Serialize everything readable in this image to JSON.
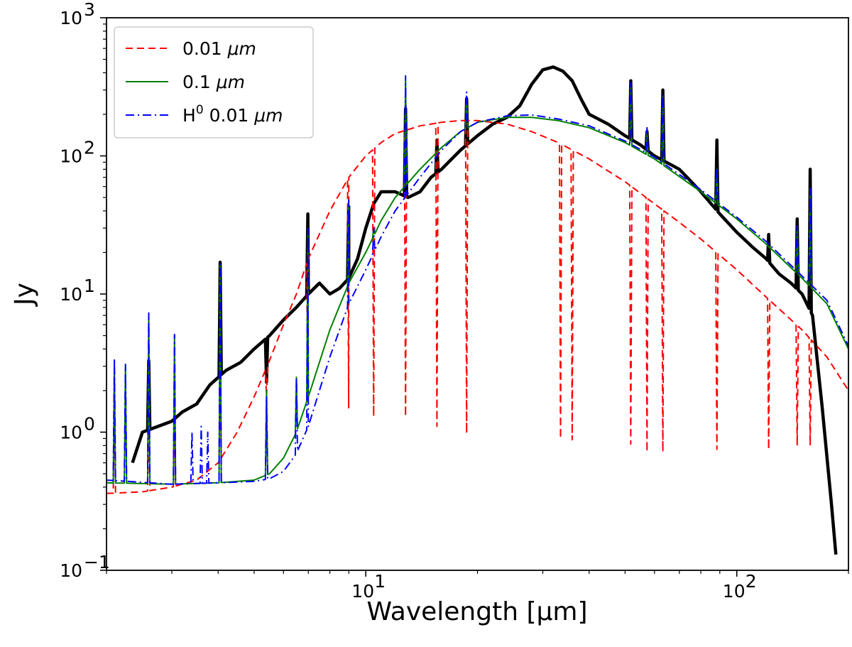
{
  "chart_data": {
    "type": "line",
    "xscale": "log",
    "yscale": "log",
    "xlim": [
      2.0,
      200.0
    ],
    "ylim": [
      0.1,
      1000
    ],
    "xlabel": "Wavelength [μm]",
    "ylabel": "Jy",
    "x_ticks": [
      {
        "value": 10,
        "base": "10",
        "exp": "1"
      },
      {
        "value": 100,
        "base": "10",
        "exp": "2"
      }
    ],
    "y_ticks": [
      {
        "value": 0.1,
        "base": "10",
        "exp": "−1"
      },
      {
        "value": 1,
        "base": "10",
        "exp": "0"
      },
      {
        "value": 10,
        "base": "10",
        "exp": "1"
      },
      {
        "value": 100,
        "base": "10",
        "exp": "2"
      },
      {
        "value": 1000,
        "base": "10",
        "exp": "3"
      }
    ],
    "legend": {
      "position": "top-left",
      "entries": [
        {
          "series": "model_001",
          "prefix": "0.01 ",
          "unit": "μm",
          "sup": ""
        },
        {
          "series": "model_01",
          "prefix": "0.1 ",
          "unit": "μm",
          "sup": ""
        },
        {
          "series": "model_H0",
          "prefix": "H",
          "sup": "0",
          "suffix": " 0.01 ",
          "unit": "μm"
        }
      ]
    },
    "series": [
      {
        "id": "model_001",
        "name": "0.01 μm",
        "color": "#ff0000",
        "style": "dashed",
        "width": 2,
        "continuum": [
          [
            2.0,
            0.36
          ],
          [
            2.5,
            0.37
          ],
          [
            3,
            0.4
          ],
          [
            3.5,
            0.45
          ],
          [
            4,
            0.6
          ],
          [
            4.5,
            1.0
          ],
          [
            5,
            1.8
          ],
          [
            5.5,
            3.3
          ],
          [
            6,
            6
          ],
          [
            6.5,
            10
          ],
          [
            7,
            18
          ],
          [
            8,
            40
          ],
          [
            9,
            70
          ],
          [
            10,
            100
          ],
          [
            11,
            125
          ],
          [
            12,
            145
          ],
          [
            14,
            165
          ],
          [
            16,
            175
          ],
          [
            18,
            180
          ],
          [
            20,
            180
          ],
          [
            24,
            170
          ],
          [
            28,
            150
          ],
          [
            33,
            125
          ],
          [
            40,
            95
          ],
          [
            50,
            65
          ],
          [
            60,
            45
          ],
          [
            70,
            33
          ],
          [
            80,
            25
          ],
          [
            100,
            15
          ],
          [
            120,
            9.5
          ],
          [
            150,
            5.5
          ],
          [
            175,
            3.5
          ],
          [
            200,
            2.0
          ]
        ],
        "lines": [
          [
            2.1,
            2.0
          ],
          [
            2.6,
            1.5
          ],
          [
            3.05,
            1.5
          ],
          [
            4.05,
            2.5
          ],
          [
            5.4,
            1.8
          ],
          [
            6.98,
            2.0
          ],
          [
            8.99,
            1.5
          ],
          [
            10.5,
            1.3
          ],
          [
            12.8,
            1.3
          ],
          [
            15.55,
            1.1
          ],
          [
            18.7,
            0.98
          ],
          [
            33.5,
            0.9
          ],
          [
            36,
            0.88
          ],
          [
            51.8,
            0.82
          ],
          [
            57.3,
            0.72
          ],
          [
            63.2,
            0.72
          ],
          [
            88.4,
            0.75
          ],
          [
            121.9,
            0.75
          ],
          [
            145.5,
            0.8
          ],
          [
            157.7,
            0.8
          ]
        ]
      },
      {
        "id": "model_01",
        "name": "0.1 μm",
        "color": "#008000",
        "style": "solid",
        "width": 2,
        "continuum": [
          [
            2.0,
            0.43
          ],
          [
            3,
            0.42
          ],
          [
            4,
            0.43
          ],
          [
            5,
            0.45
          ],
          [
            5.5,
            0.5
          ],
          [
            6,
            0.65
          ],
          [
            6.5,
            1.0
          ],
          [
            7,
            1.8
          ],
          [
            7.5,
            3.2
          ],
          [
            8,
            5.5
          ],
          [
            9,
            12
          ],
          [
            10,
            20
          ],
          [
            11,
            34
          ],
          [
            12,
            50
          ],
          [
            14,
            80
          ],
          [
            16,
            115
          ],
          [
            18,
            150
          ],
          [
            20,
            175
          ],
          [
            24,
            190
          ],
          [
            28,
            190
          ],
          [
            33,
            180
          ],
          [
            40,
            160
          ],
          [
            50,
            125
          ],
          [
            60,
            95
          ],
          [
            80,
            55
          ],
          [
            100,
            35
          ],
          [
            120,
            23
          ],
          [
            150,
            13
          ],
          [
            175,
            8.5
          ],
          [
            200,
            4.0
          ]
        ],
        "lines": [
          [
            2.1,
            3.3
          ],
          [
            2.25,
            3.0
          ],
          [
            2.6,
            7.2
          ],
          [
            3.05,
            5.0
          ],
          [
            4.05,
            16.0
          ],
          [
            5.4,
            2.0
          ],
          [
            6.5,
            2.5
          ],
          [
            6.98,
            28
          ],
          [
            8.99,
            45
          ],
          [
            10.5,
            30
          ],
          [
            12.8,
            350
          ],
          [
            18.7,
            270
          ],
          [
            51.8,
            330
          ],
          [
            57.3,
            150
          ],
          [
            63.2,
            270
          ],
          [
            88.4,
            80
          ],
          [
            121.9,
            22
          ],
          [
            145.5,
            30
          ],
          [
            157.7,
            55
          ]
        ]
      },
      {
        "id": "model_H0",
        "name": "H0 0.01 μm",
        "color": "#0000ff",
        "style": "dashdot",
        "width": 2,
        "continuum": [
          [
            2.0,
            0.45
          ],
          [
            3,
            0.42
          ],
          [
            4,
            0.43
          ],
          [
            5,
            0.44
          ],
          [
            5.5,
            0.46
          ],
          [
            6,
            0.52
          ],
          [
            6.5,
            0.7
          ],
          [
            7,
            1.1
          ],
          [
            7.5,
            2.0
          ],
          [
            8,
            3.5
          ],
          [
            9,
            8.5
          ],
          [
            10,
            15
          ],
          [
            11,
            26
          ],
          [
            12,
            40
          ],
          [
            14,
            70
          ],
          [
            16,
            110
          ],
          [
            18,
            150
          ],
          [
            20,
            175
          ],
          [
            24,
            195
          ],
          [
            28,
            198
          ],
          [
            33,
            185
          ],
          [
            40,
            165
          ],
          [
            50,
            128
          ],
          [
            60,
            98
          ],
          [
            80,
            57
          ],
          [
            100,
            36
          ],
          [
            120,
            24
          ],
          [
            150,
            13.5
          ],
          [
            175,
            9
          ],
          [
            200,
            4.2
          ]
        ],
        "lines": [
          [
            2.1,
            3.4
          ],
          [
            2.25,
            3.1
          ],
          [
            2.6,
            7.3
          ],
          [
            3.05,
            5.1
          ],
          [
            3.4,
            1.0
          ],
          [
            3.6,
            1.1
          ],
          [
            3.75,
            1.0
          ],
          [
            4.05,
            16.5
          ],
          [
            5.4,
            1.8
          ],
          [
            6.5,
            2.5
          ],
          [
            6.98,
            30
          ],
          [
            8.99,
            48
          ],
          [
            10.5,
            30
          ],
          [
            12.8,
            380
          ],
          [
            18.7,
            290
          ],
          [
            51.8,
            340
          ],
          [
            57.3,
            160
          ],
          [
            63.2,
            280
          ],
          [
            88.4,
            82
          ],
          [
            121.9,
            23
          ],
          [
            145.5,
            31
          ],
          [
            157.7,
            58
          ]
        ]
      },
      {
        "id": "observed",
        "name": "observed",
        "color": "#000000",
        "style": "solid",
        "width": 4.5,
        "continuum": [
          [
            2.35,
            0.6
          ],
          [
            2.5,
            1.0
          ],
          [
            3,
            1.2
          ],
          [
            3.2,
            1.4
          ],
          [
            3.5,
            1.6
          ],
          [
            3.8,
            2.2
          ],
          [
            4.2,
            2.8
          ],
          [
            4.6,
            3.2
          ],
          [
            5,
            4.0
          ],
          [
            5.5,
            5.0
          ],
          [
            6,
            6.5
          ],
          [
            6.5,
            8.0
          ],
          [
            7,
            10
          ],
          [
            7.5,
            12
          ],
          [
            8,
            10
          ],
          [
            8.5,
            11
          ],
          [
            9,
            13
          ],
          [
            9.5,
            18
          ],
          [
            10,
            30
          ],
          [
            10.5,
            45
          ],
          [
            11,
            55
          ],
          [
            12,
            55
          ],
          [
            13,
            50
          ],
          [
            14,
            55
          ],
          [
            15,
            70
          ],
          [
            16,
            80
          ],
          [
            18,
            110
          ],
          [
            20,
            140
          ],
          [
            22,
            170
          ],
          [
            24,
            190
          ],
          [
            26,
            230
          ],
          [
            28,
            330
          ],
          [
            30,
            420
          ],
          [
            32,
            440
          ],
          [
            34,
            410
          ],
          [
            36,
            350
          ],
          [
            38,
            260
          ],
          [
            40,
            200
          ],
          [
            45,
            170
          ],
          [
            50,
            140
          ],
          [
            55,
            120
          ],
          [
            60,
            100
          ],
          [
            70,
            80
          ],
          [
            80,
            55
          ],
          [
            90,
            38
          ],
          [
            100,
            28
          ],
          [
            110,
            22
          ],
          [
            120,
            18
          ],
          [
            130,
            14
          ],
          [
            140,
            12
          ],
          [
            150,
            10
          ],
          [
            160,
            7
          ],
          [
            170,
            1.5
          ],
          [
            180,
            0.3
          ],
          [
            185,
            0.13
          ]
        ],
        "lines": [
          [
            2.6,
            3.3
          ],
          [
            4.05,
            17
          ],
          [
            5.4,
            2.3
          ],
          [
            6.98,
            38
          ],
          [
            8.99,
            43
          ],
          [
            12.8,
            220
          ],
          [
            15.55,
            130
          ],
          [
            18.7,
            260
          ],
          [
            51.8,
            350
          ],
          [
            57.3,
            150
          ],
          [
            63.2,
            300
          ],
          [
            88.4,
            130
          ],
          [
            121.9,
            27
          ],
          [
            145.5,
            35
          ],
          [
            157.7,
            80
          ]
        ]
      }
    ]
  }
}
